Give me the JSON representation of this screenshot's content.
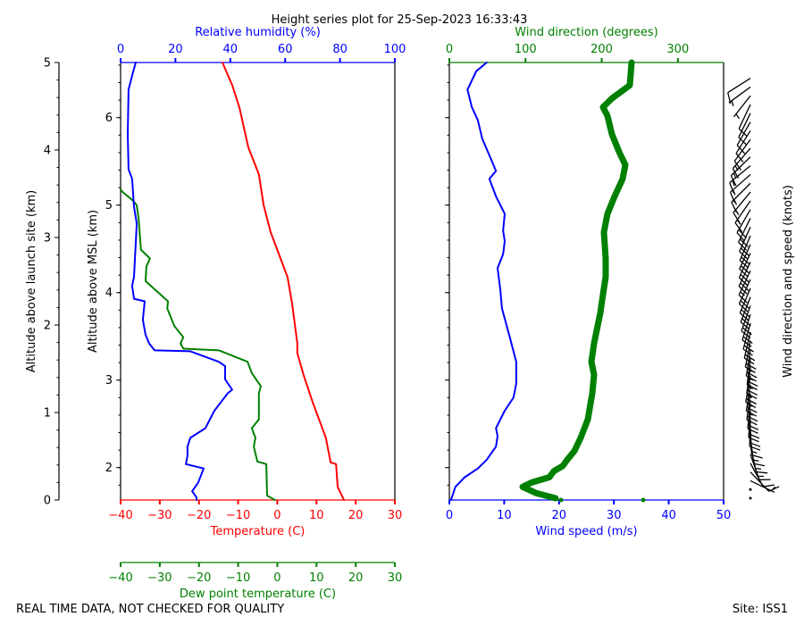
{
  "title": "Height series plot for 25-Sep-2023 16:33:43",
  "footer_left": "REAL TIME DATA, NOT CHECKED FOR QUALITY",
  "footer_right": "Site: ISS1",
  "colors": {
    "temperature": "#ff0000",
    "dewpoint": "#008000",
    "rh": "#0000ff",
    "wind_speed": "#0000ff",
    "wind_direction": "#008000",
    "barbs": "#000000"
  },
  "chart_data": [
    {
      "type": "line",
      "panel": "thermodynamic",
      "ylabel_agl": "Altitude above launch site (km)",
      "ylim_agl": [
        0,
        5
      ],
      "yticks_agl": [
        0,
        1,
        2,
        3,
        4,
        5
      ],
      "ylabel_msl": "Altitude above MSL (km)",
      "ylim_msl": [
        1.63,
        6.63
      ],
      "yticks_msl": [
        2,
        3,
        4,
        5,
        6
      ],
      "axes": {
        "temperature": {
          "label": "Temperature (C)",
          "lim": [
            -40,
            30
          ],
          "ticks": [
            -40,
            -30,
            -20,
            -10,
            0,
            10,
            20,
            30
          ],
          "tick_labels": [
            "−40",
            "−30",
            "−20",
            "−10",
            "0",
            "10",
            "20",
            "30"
          ]
        },
        "dewpoint": {
          "label": "Dew point temperature (C)",
          "lim": [
            -40,
            30
          ],
          "ticks": [
            -40,
            -30,
            -20,
            -10,
            0,
            10,
            20,
            30
          ],
          "tick_labels": [
            "−40",
            "−30",
            "−20",
            "−10",
            "0",
            "10",
            "20",
            "30"
          ]
        },
        "rh": {
          "label": "Relative humidity (%)",
          "lim": [
            0,
            100
          ],
          "ticks": [
            0,
            20,
            40,
            60,
            80,
            100
          ],
          "tick_labels": [
            "0",
            "20",
            "40",
            "60",
            "80",
            "100"
          ]
        }
      },
      "series": [
        {
          "key": "temperature",
          "points": [
            [
              0,
              17.0
            ],
            [
              0.15,
              15.4
            ],
            [
              0.41,
              15.0
            ],
            [
              0.43,
              13.6
            ],
            [
              0.71,
              12.4
            ],
            [
              1.12,
              9.0
            ],
            [
              1.43,
              6.7
            ],
            [
              1.68,
              5.1
            ],
            [
              1.79,
              5.1
            ],
            [
              2.24,
              3.8
            ],
            [
              2.55,
              2.6
            ],
            [
              3.06,
              -1.7
            ],
            [
              3.37,
              -3.5
            ],
            [
              3.72,
              -4.7
            ],
            [
              4.03,
              -7.4
            ],
            [
              4.49,
              -9.7
            ],
            [
              4.74,
              -11.5
            ],
            [
              5.0,
              -14.0
            ]
          ]
        },
        {
          "key": "dewpoint",
          "points": [
            [
              0,
              -0.6
            ],
            [
              0.05,
              -2.6
            ],
            [
              0.41,
              -2.8
            ],
            [
              0.44,
              -5.1
            ],
            [
              0.61,
              -6.0
            ],
            [
              0.71,
              -5.6
            ],
            [
              0.82,
              -6.5
            ],
            [
              0.92,
              -4.7
            ],
            [
              1.22,
              -4.7
            ],
            [
              1.3,
              -4.2
            ],
            [
              1.45,
              -6.5
            ],
            [
              1.58,
              -7.6
            ],
            [
              1.65,
              -11.5
            ],
            [
              1.71,
              -14.9
            ],
            [
              1.73,
              -24.0
            ],
            [
              1.79,
              -24.7
            ],
            [
              1.86,
              -24.0
            ],
            [
              1.99,
              -26.3
            ],
            [
              2.19,
              -28.1
            ],
            [
              2.27,
              -27.9
            ],
            [
              2.5,
              -33.6
            ],
            [
              2.53,
              -33.6
            ],
            [
              2.67,
              -33.4
            ],
            [
              2.76,
              -32.5
            ],
            [
              2.86,
              -34.8
            ],
            [
              3.21,
              -35.4
            ],
            [
              3.37,
              -35.9
            ],
            [
              3.42,
              -36.8
            ],
            [
              3.52,
              -39.5
            ],
            [
              3.55,
              -40
            ]
          ]
        },
        {
          "key": "rh",
          "points": [
            [
              0.0,
              27.7
            ],
            [
              0.03,
              27.7
            ],
            [
              0.1,
              26.1
            ],
            [
              0.2,
              28.3
            ],
            [
              0.36,
              30.3
            ],
            [
              0.41,
              23.8
            ],
            [
              0.51,
              24.4
            ],
            [
              0.61,
              24.4
            ],
            [
              0.71,
              25.4
            ],
            [
              0.82,
              30.9
            ],
            [
              1.02,
              34.2
            ],
            [
              1.22,
              39.1
            ],
            [
              1.26,
              40.7
            ],
            [
              1.38,
              38.1
            ],
            [
              1.53,
              38.1
            ],
            [
              1.58,
              35.8
            ],
            [
              1.7,
              25.4
            ],
            [
              1.71,
              12.4
            ],
            [
              1.79,
              10.4
            ],
            [
              1.89,
              9.1
            ],
            [
              2.06,
              8.1
            ],
            [
              2.27,
              8.8
            ],
            [
              2.3,
              4.9
            ],
            [
              2.45,
              4.2
            ],
            [
              2.55,
              4.9
            ],
            [
              3.16,
              5.9
            ],
            [
              3.35,
              4.9
            ],
            [
              3.67,
              4.2
            ],
            [
              3.78,
              2.9
            ],
            [
              4.18,
              2.6
            ],
            [
              4.69,
              2.9
            ],
            [
              4.85,
              4.2
            ],
            [
              5.0,
              5.5
            ]
          ]
        }
      ]
    },
    {
      "type": "line",
      "panel": "wind",
      "ylim_agl": [
        0,
        5
      ],
      "axes": {
        "wind_speed": {
          "label": "Wind speed (m/s)",
          "lim": [
            0,
            50
          ],
          "ticks": [
            0,
            10,
            20,
            30,
            40,
            50
          ],
          "tick_labels": [
            "0",
            "10",
            "20",
            "30",
            "40",
            "50"
          ]
        },
        "wind_direction": {
          "label": "Wind direction (degrees)",
          "lim": [
            0,
            360
          ],
          "ticks": [
            0,
            100,
            200,
            300
          ],
          "tick_labels": [
            "0",
            "100",
            "200",
            "300"
          ]
        },
        "barbs": {
          "label": "Wind direction and speed (knots)"
        }
      },
      "series": [
        {
          "key": "wind_speed",
          "points": [
            [
              0,
              0.3
            ],
            [
              0.15,
              1.1
            ],
            [
              0.26,
              2.8
            ],
            [
              0.36,
              5.2
            ],
            [
              0.46,
              6.8
            ],
            [
              0.61,
              8.5
            ],
            [
              0.73,
              8.8
            ],
            [
              0.82,
              8.5
            ],
            [
              1.02,
              10.1
            ],
            [
              1.17,
              11.7
            ],
            [
              1.33,
              12.2
            ],
            [
              1.58,
              12.2
            ],
            [
              1.89,
              10.9
            ],
            [
              2.19,
              9.6
            ],
            [
              2.4,
              9.3
            ],
            [
              2.65,
              8.8
            ],
            [
              2.81,
              9.8
            ],
            [
              2.96,
              10.1
            ],
            [
              3.08,
              9.8
            ],
            [
              3.27,
              10.1
            ],
            [
              3.47,
              8.5
            ],
            [
              3.67,
              7.3
            ],
            [
              3.76,
              8.5
            ],
            [
              3.88,
              7.7
            ],
            [
              4.13,
              6.0
            ],
            [
              4.34,
              5.2
            ],
            [
              4.49,
              4.1
            ],
            [
              4.69,
              3.3
            ],
            [
              4.9,
              4.9
            ],
            [
              5.0,
              6.8
            ]
          ]
        },
        {
          "key": "wind_direction",
          "points": [
            [
              0.02,
              139.5
            ],
            [
              0.08,
              113.7
            ],
            [
              0.15,
              96.2
            ],
            [
              0.2,
              107.9
            ],
            [
              0.26,
              131.3
            ],
            [
              0.33,
              137.2
            ],
            [
              0.39,
              148.9
            ],
            [
              0.46,
              154.8
            ],
            [
              0.56,
              164.2
            ],
            [
              0.71,
              172.4
            ],
            [
              0.92,
              181.8
            ],
            [
              1.22,
              187.6
            ],
            [
              1.43,
              190.0
            ],
            [
              1.58,
              186.4
            ],
            [
              1.79,
              190.0
            ],
            [
              1.94,
              193.5
            ],
            [
              2.14,
              198.2
            ],
            [
              2.35,
              201.7
            ],
            [
              2.55,
              205.2
            ],
            [
              2.76,
              205.2
            ],
            [
              3.06,
              202.9
            ],
            [
              3.27,
              207.6
            ],
            [
              3.47,
              216.9
            ],
            [
              3.67,
              227.5
            ],
            [
              3.83,
              231.0
            ],
            [
              3.98,
              222.8
            ],
            [
              4.18,
              213.4
            ],
            [
              4.39,
              207.6
            ],
            [
              4.49,
              201.7
            ],
            [
              4.59,
              213.4
            ],
            [
              4.74,
              236.9
            ],
            [
              5.0,
              239.2
            ]
          ]
        }
      ],
      "surface_direction_points": [
        146.6,
        254.5
      ]
    }
  ]
}
